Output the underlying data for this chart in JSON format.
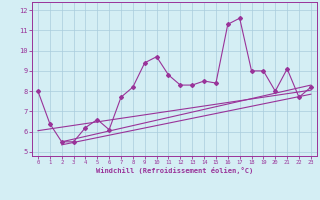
{
  "x_values": [
    0,
    1,
    2,
    3,
    4,
    5,
    6,
    7,
    8,
    9,
    10,
    11,
    12,
    13,
    14,
    15,
    16,
    17,
    18,
    19,
    20,
    21,
    22,
    23
  ],
  "main_line_y": [
    8.0,
    6.4,
    5.5,
    5.5,
    6.2,
    6.6,
    6.1,
    7.7,
    8.2,
    9.4,
    9.7,
    8.8,
    8.3,
    8.3,
    8.5,
    8.4,
    11.3,
    11.6,
    9.0,
    9.0,
    8.0,
    9.1,
    7.7,
    8.2
  ],
  "trend_lines": [
    [
      [
        0,
        23
      ],
      [
        6.05,
        8.05
      ]
    ],
    [
      [
        2,
        23
      ],
      [
        5.35,
        7.85
      ]
    ],
    [
      [
        2,
        23
      ],
      [
        5.5,
        8.3
      ]
    ]
  ],
  "line_color": "#993399",
  "bg_color": "#d4eef4",
  "grid_color": "#aaccdd",
  "xlabel": "Windchill (Refroidissement éolien,°C)",
  "yticks": [
    5,
    6,
    7,
    8,
    9,
    10,
    11,
    12
  ],
  "xlim": [
    -0.5,
    23.5
  ],
  "ylim": [
    4.8,
    12.4
  ]
}
